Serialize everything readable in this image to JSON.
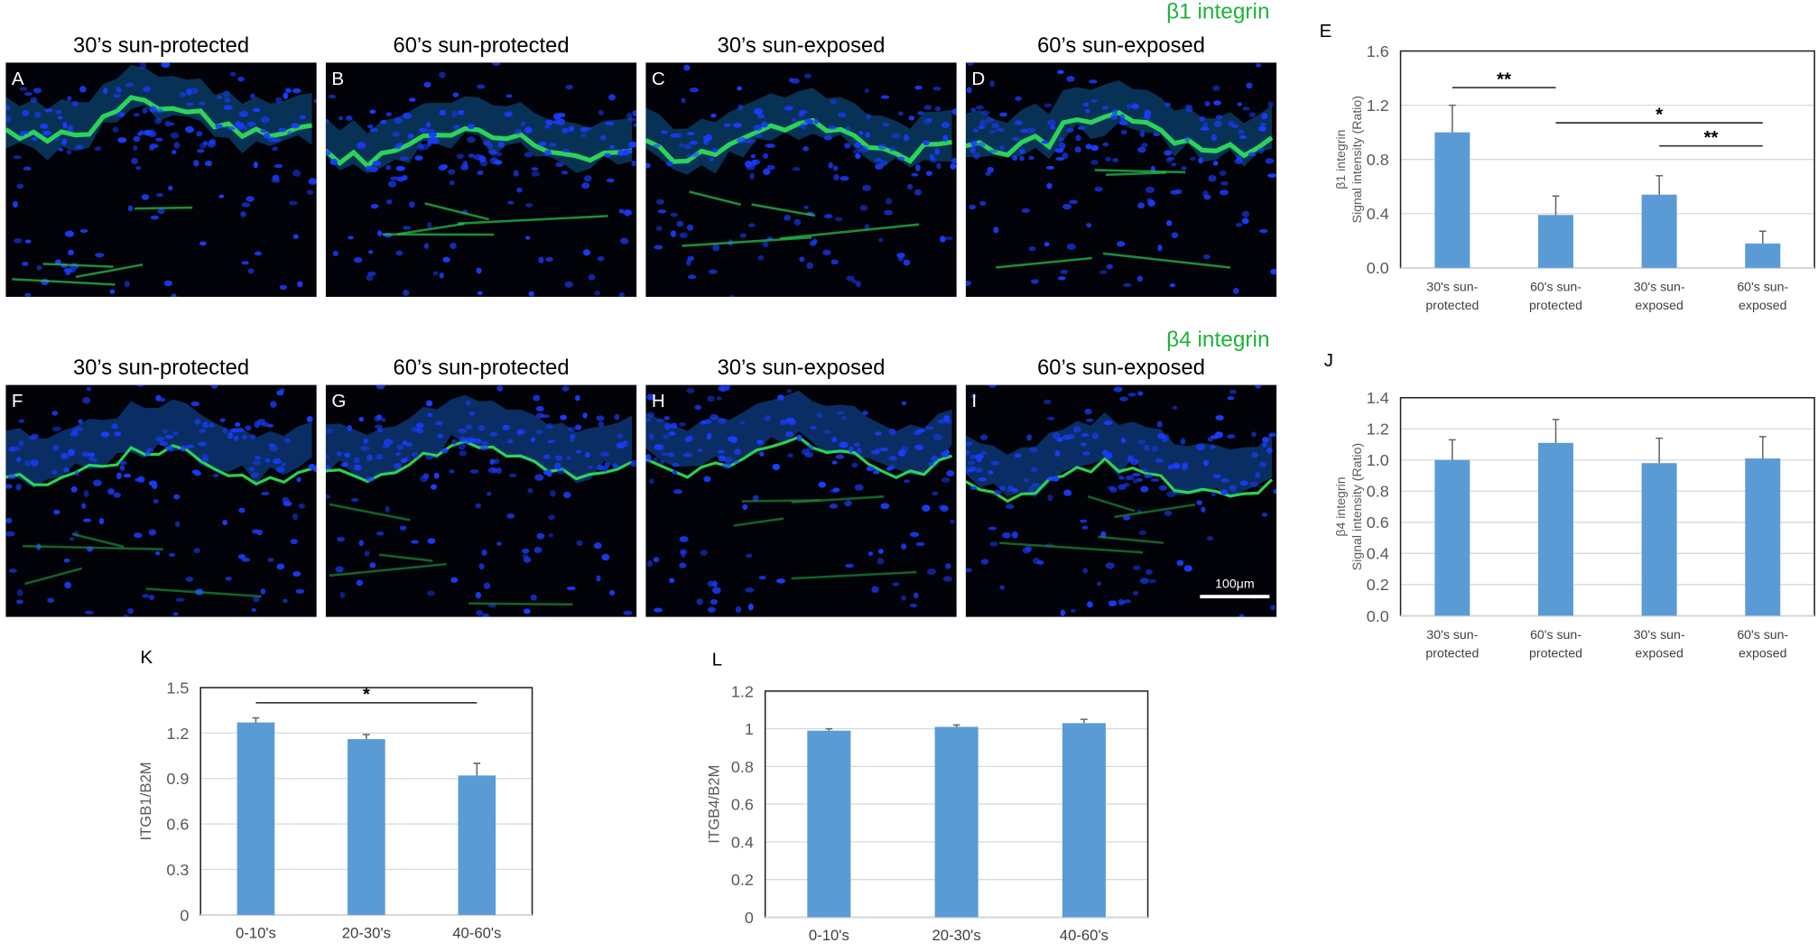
{
  "markers": {
    "row1": "β1 integrin",
    "row2": "β4 integrin"
  },
  "colors": {
    "bar": "#5b9bd5",
    "marker_green": "#1db33a",
    "grid": "#d9d9d9"
  },
  "row1_panels": [
    {
      "letter": "A",
      "title": "30’s sun-protected"
    },
    {
      "letter": "B",
      "title": "60’s sun-protected"
    },
    {
      "letter": "C",
      "title": "30’s sun-exposed"
    },
    {
      "letter": "D",
      "title": "60’s sun-exposed"
    }
  ],
  "row2_panels": [
    {
      "letter": "F",
      "title": "30’s sun-protected"
    },
    {
      "letter": "G",
      "title": "60’s sun-protected"
    },
    {
      "letter": "H",
      "title": "30’s sun-exposed"
    },
    {
      "letter": "I",
      "title": "60’s sun-exposed"
    }
  ],
  "scale_bar": "100μm",
  "chart_data": [
    {
      "id": "E",
      "letter": "E",
      "type": "bar",
      "categories": [
        [
          "30's sun-",
          "protected"
        ],
        [
          "60's sun-",
          "protected"
        ],
        [
          "30's sun-",
          "exposed"
        ],
        [
          "60's sun-",
          "exposed"
        ]
      ],
      "values": [
        1.0,
        0.39,
        0.54,
        0.18
      ],
      "errors": [
        0.2,
        0.14,
        0.14,
        0.09
      ],
      "ylabel": [
        "β1 integrin",
        "Signal intensity (Ratio)"
      ],
      "ylim": [
        0,
        1.6
      ],
      "yticks": [
        "0.0",
        "0.4",
        "0.8",
        "1.2",
        "1.6"
      ],
      "significance": [
        {
          "from": 0,
          "to": 1,
          "y": 1.33,
          "label": "**"
        },
        {
          "from": 1,
          "to": 3,
          "y": 1.07,
          "label": "*"
        },
        {
          "from": 2,
          "to": 3,
          "y": 0.9,
          "label": "**"
        }
      ],
      "grid": true
    },
    {
      "id": "J",
      "letter": "J",
      "type": "bar",
      "categories": [
        [
          "30's sun-",
          "protected"
        ],
        [
          "60's sun-",
          "protected"
        ],
        [
          "30's sun-",
          "exposed"
        ],
        [
          "60's sun-",
          "exposed"
        ]
      ],
      "values": [
        1.0,
        1.11,
        0.98,
        1.01
      ],
      "errors": [
        0.13,
        0.15,
        0.16,
        0.14
      ],
      "ylabel": [
        "β4 integrin",
        "Signal intensity (Ratio)"
      ],
      "ylim": [
        0,
        1.4
      ],
      "yticks": [
        "0.0",
        "0.2",
        "0.4",
        "0.6",
        "0.8",
        "1.0",
        "1.2",
        "1.4"
      ],
      "significance": [],
      "grid": true
    },
    {
      "id": "K",
      "letter": "K",
      "type": "bar",
      "categories": [
        [
          "0-10's"
        ],
        [
          "20-30's"
        ],
        [
          "40-60's"
        ]
      ],
      "values": [
        1.27,
        1.16,
        0.92
      ],
      "errors": [
        0.03,
        0.03,
        0.08
      ],
      "ylabel": [
        "ITGB1/B2M"
      ],
      "ylim": [
        0,
        1.5
      ],
      "yticks": [
        "0",
        "0.3",
        "0.6",
        "0.9",
        "1.2",
        "1.5"
      ],
      "significance": [
        {
          "from": 0,
          "to": 2,
          "y": 1.4,
          "label": "*"
        }
      ],
      "grid": true
    },
    {
      "id": "L",
      "letter": "L",
      "type": "bar",
      "categories": [
        [
          "0-10's"
        ],
        [
          "20-30's"
        ],
        [
          "40-60's"
        ]
      ],
      "values": [
        0.99,
        1.01,
        1.03
      ],
      "errors": [
        0.01,
        0.01,
        0.02
      ],
      "ylabel": [
        "ITGB4/B2M"
      ],
      "ylim": [
        0,
        1.2
      ],
      "yticks": [
        "0",
        "0.2",
        "0.4",
        "0.6",
        "0.8",
        "1",
        "1.2"
      ],
      "significance": [],
      "grid": true
    }
  ]
}
